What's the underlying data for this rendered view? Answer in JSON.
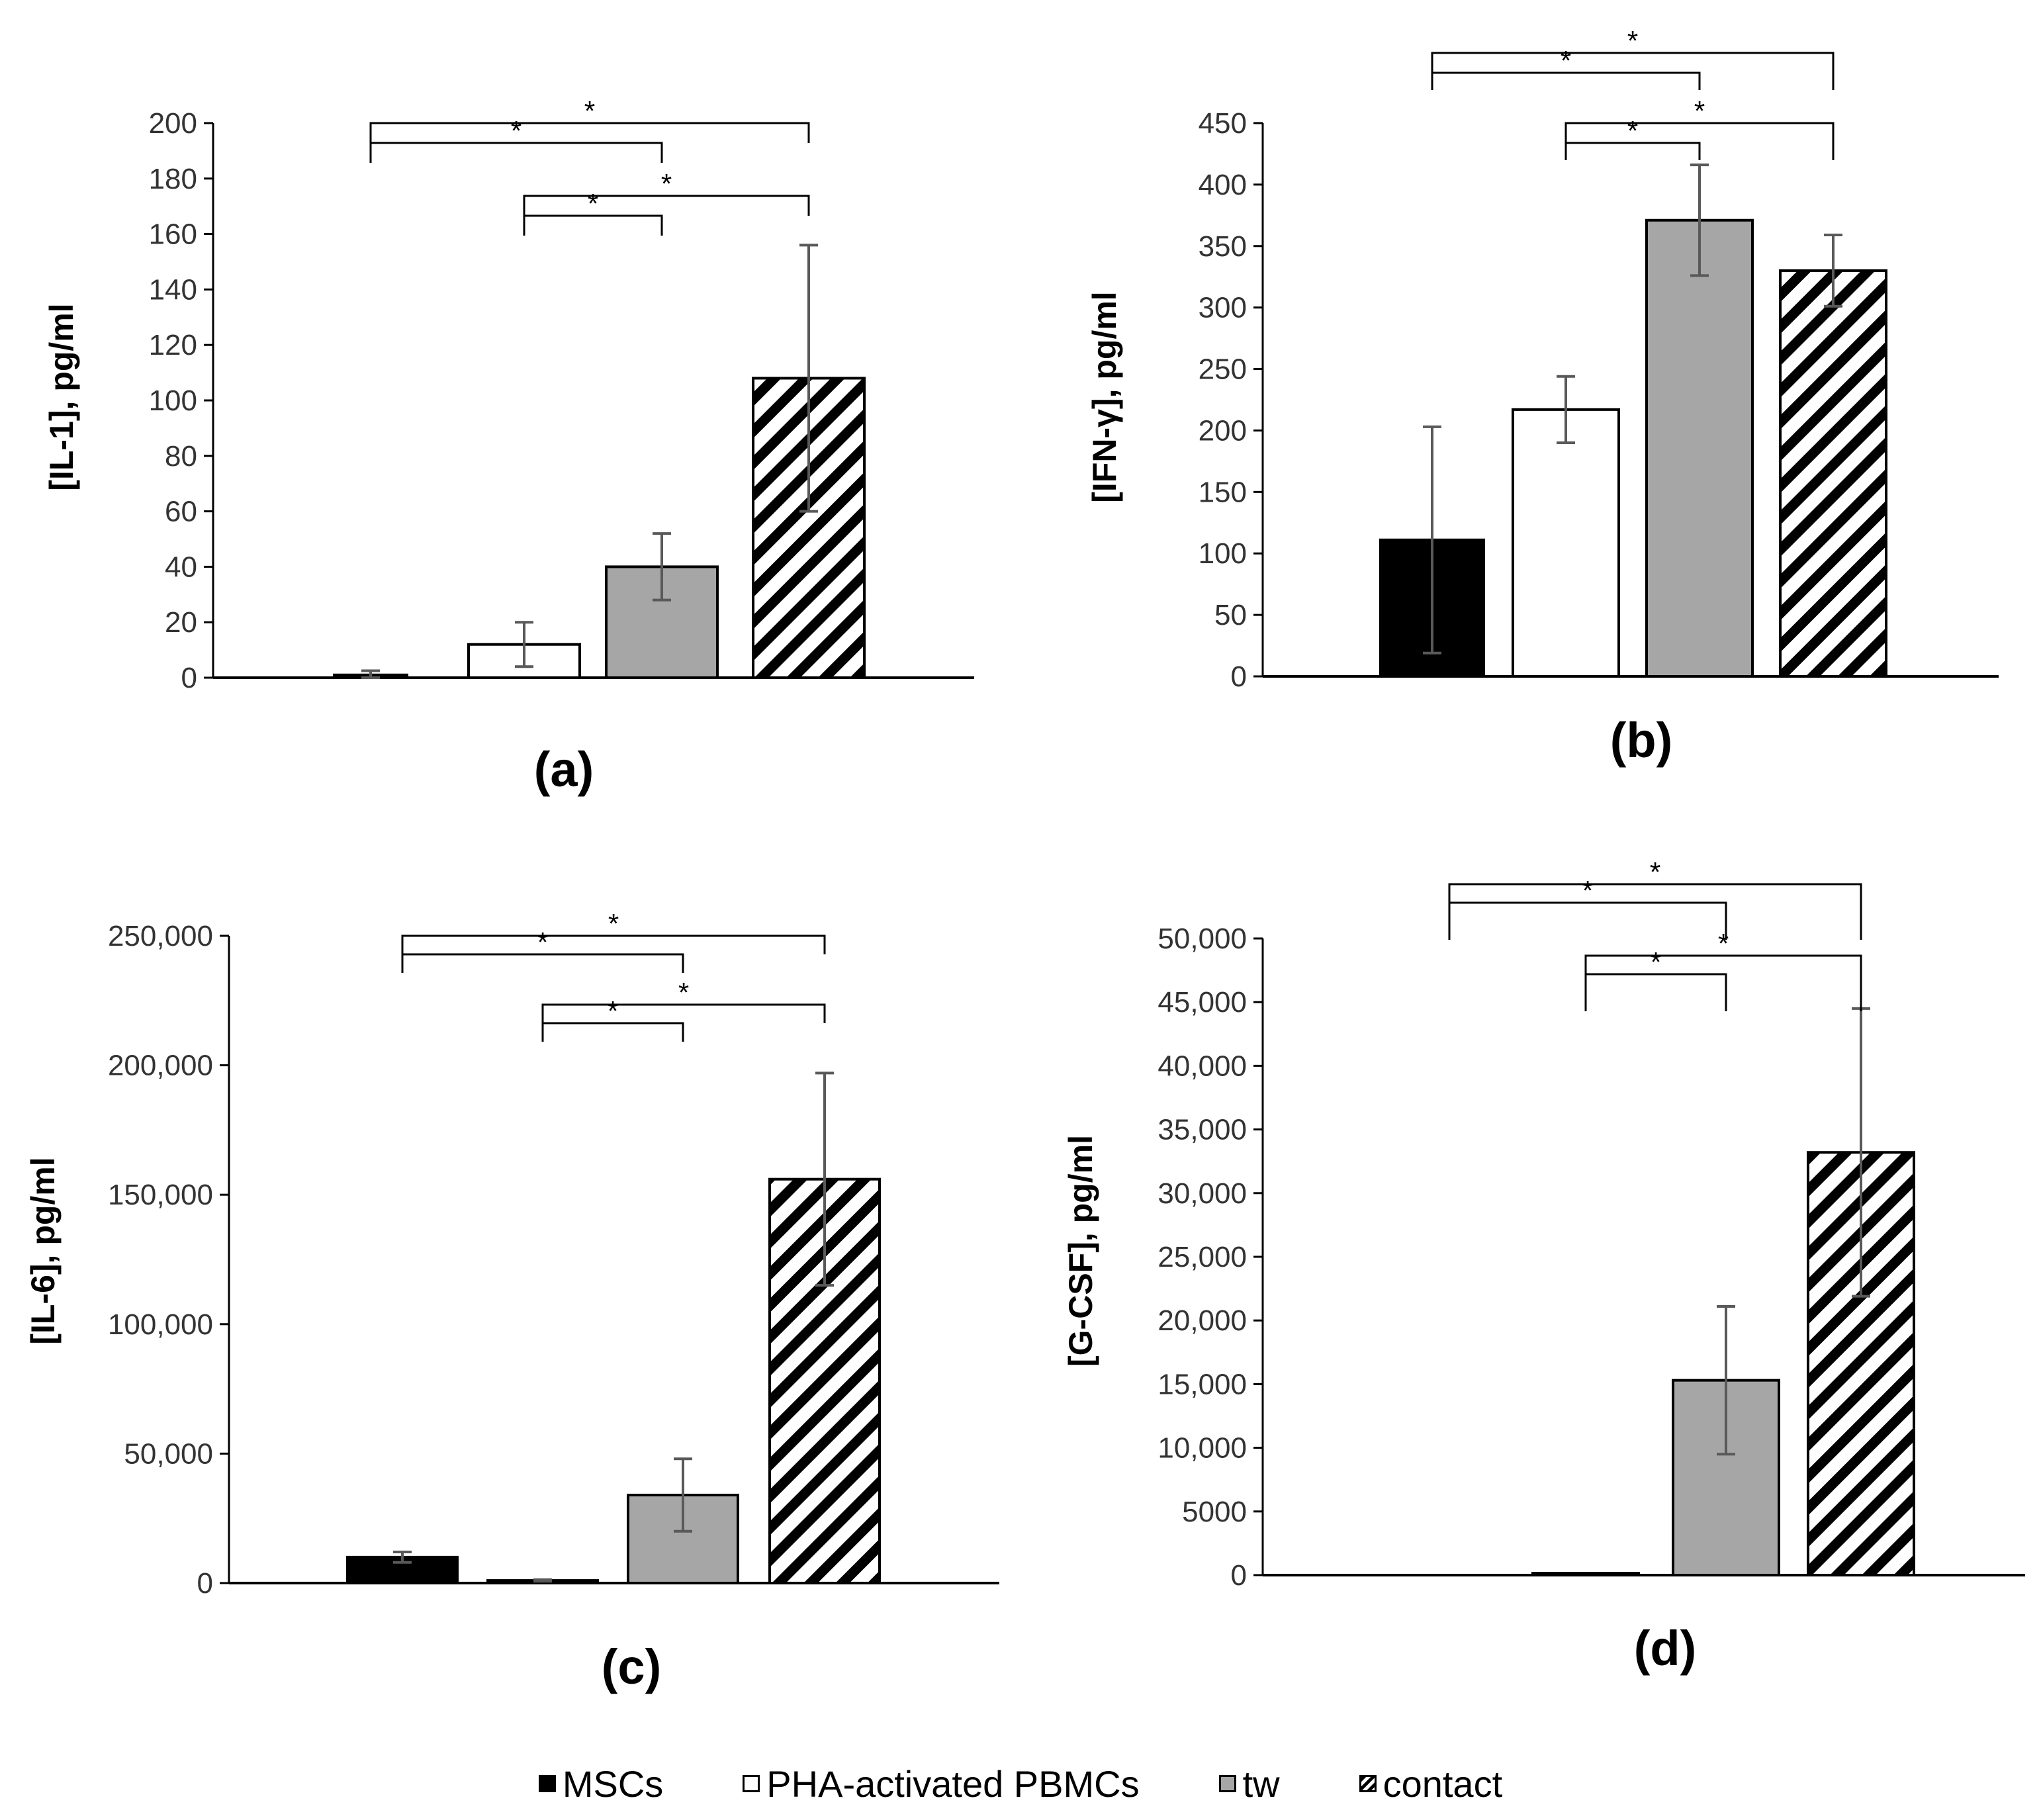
{
  "legend": {
    "items": [
      {
        "label": "MSCs",
        "fill": "#000000",
        "pattern": "solid"
      },
      {
        "label": "PHA-activated PBMCs",
        "fill": "#ffffff",
        "pattern": "solid"
      },
      {
        "label": "tw",
        "fill": "#a6a6a6",
        "pattern": "solid"
      },
      {
        "label": "contact",
        "fill": "#ffffff",
        "pattern": "hatch"
      }
    ]
  },
  "colors": {
    "axis": "#000000",
    "error_bar": "#595959",
    "bracket": "#000000"
  },
  "significance_marker": "*",
  "chart_data": [
    {
      "panel": "(a)",
      "type": "bar",
      "ylabel": "[IL-1], pg/ml",
      "categories": [
        "MSCs",
        "PHA-activated PBMCs",
        "tw",
        "contact"
      ],
      "values": [
        1,
        12,
        40,
        108
      ],
      "errors": [
        1.5,
        8,
        12,
        48
      ],
      "ylim": [
        0,
        200
      ],
      "ticks": [
        0,
        20,
        40,
        60,
        80,
        100,
        120,
        140,
        160,
        180,
        200
      ],
      "tick_labels": [
        "0",
        "20",
        "40",
        "60",
        "80",
        "100",
        "120",
        "140",
        "160",
        "180",
        "200"
      ],
      "significance": [
        {
          "from": 0,
          "to": 3,
          "label": "*"
        },
        {
          "from": 0,
          "to": 2,
          "label": "*"
        },
        {
          "from": 1,
          "to": 3,
          "label": "*"
        },
        {
          "from": 1,
          "to": 2,
          "label": "*"
        }
      ]
    },
    {
      "panel": "(b)",
      "type": "bar",
      "ylabel": "[IFN-γ],  pg/ml",
      "categories": [
        "MSCs",
        "PHA-activated PBMCs",
        "tw",
        "contact"
      ],
      "values": [
        111,
        217,
        371,
        330
      ],
      "errors": [
        92,
        27,
        45,
        29
      ],
      "ylim": [
        0,
        450
      ],
      "ticks": [
        0,
        50,
        100,
        150,
        200,
        250,
        300,
        350,
        400,
        450
      ],
      "tick_labels": [
        "0",
        "50",
        "100",
        "150",
        "200",
        "250",
        "300",
        "350",
        "400",
        "450"
      ],
      "significance": [
        {
          "from": 0,
          "to": 3,
          "label": "*"
        },
        {
          "from": 0,
          "to": 2,
          "label": "*"
        },
        {
          "from": 1,
          "to": 3,
          "label": "*"
        },
        {
          "from": 1,
          "to": 2,
          "label": "*"
        }
      ]
    },
    {
      "panel": "(c)",
      "type": "bar",
      "ylabel": "[IL-6], pg/ml",
      "categories": [
        "MSCs",
        "PHA-activated PBMCs",
        "tw",
        "contact"
      ],
      "values": [
        10000,
        1000,
        34000,
        156000
      ],
      "errors": [
        2000,
        300,
        14000,
        41000
      ],
      "ylim": [
        0,
        250000
      ],
      "ticks": [
        0,
        50000,
        100000,
        150000,
        200000,
        250000
      ],
      "tick_labels": [
        "0",
        "50,000",
        "100,000",
        "150,000",
        "200,000",
        "250,000"
      ],
      "significance": [
        {
          "from": 0,
          "to": 3,
          "label": "*"
        },
        {
          "from": 0,
          "to": 2,
          "label": "*"
        },
        {
          "from": 1,
          "to": 3,
          "label": "*"
        },
        {
          "from": 1,
          "to": 2,
          "label": "*"
        }
      ]
    },
    {
      "panel": "(d)",
      "type": "bar",
      "ylabel": "[G-CSF], pg/ml",
      "categories": [
        "MSCs",
        "PHA-activated PBMCs",
        "tw",
        "contact"
      ],
      "values": [
        0,
        150,
        15300,
        33200
      ],
      "errors": [
        0,
        0,
        5800,
        11300
      ],
      "ylim": [
        0,
        50000
      ],
      "ticks": [
        0,
        5000,
        10000,
        15000,
        20000,
        25000,
        30000,
        35000,
        40000,
        45000,
        50000
      ],
      "tick_labels": [
        "0",
        "5000",
        "10,000",
        "15,000",
        "20,000",
        "25,000",
        "30,000",
        "35,000",
        "40,000",
        "45,000",
        "50,000"
      ],
      "significance": [
        {
          "from": 0,
          "to": 3,
          "label": "*"
        },
        {
          "from": 0,
          "to": 2,
          "label": "*"
        },
        {
          "from": 1,
          "to": 3,
          "label": "*"
        },
        {
          "from": 1,
          "to": 2,
          "label": "*"
        }
      ]
    }
  ]
}
